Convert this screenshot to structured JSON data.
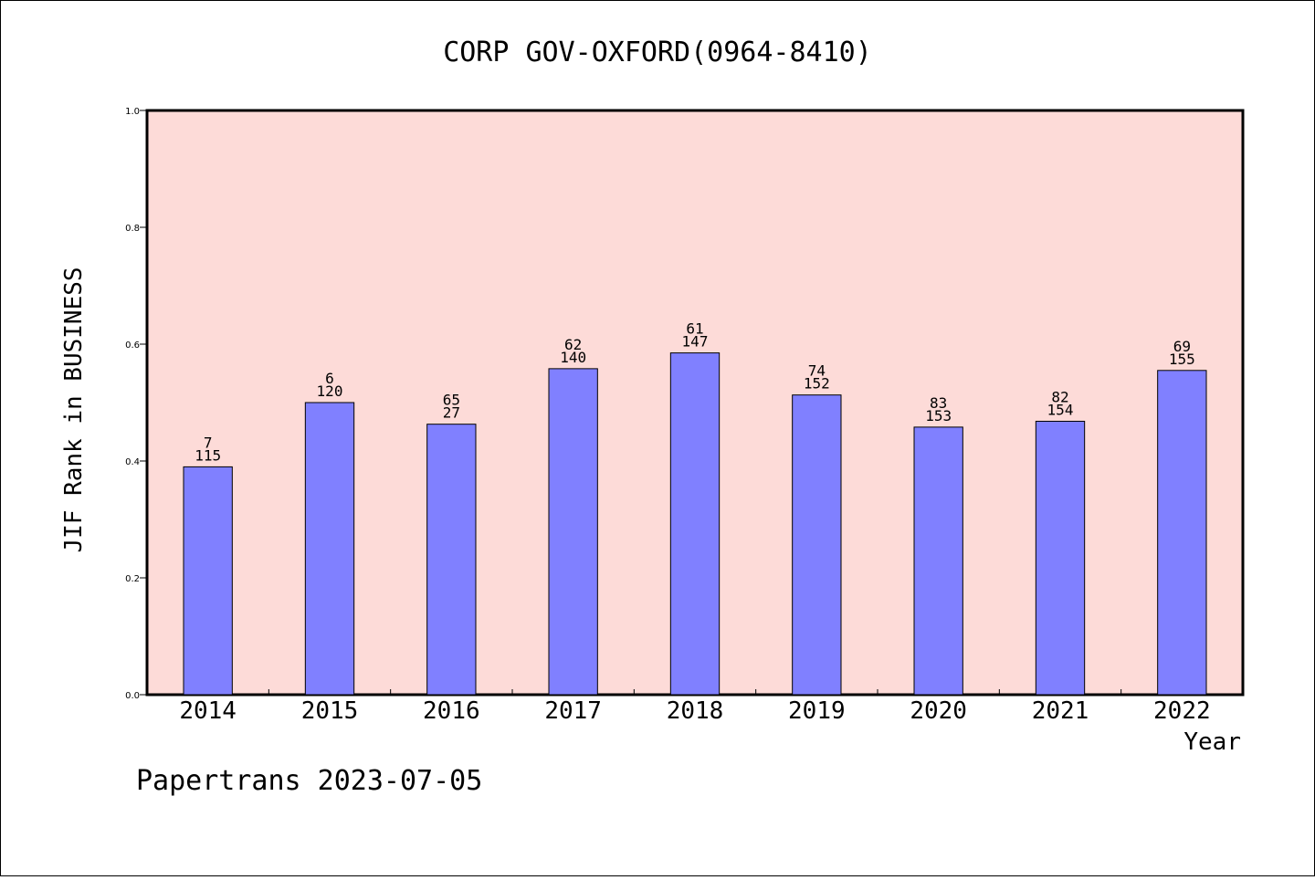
{
  "chart_data": {
    "type": "bar",
    "title": "CORP GOV-OXFORD(0964-8410)",
    "xlabel": "Year",
    "ylabel": "JIF Rank in BUSINESS",
    "ylim": [
      0,
      1.0
    ],
    "yticks": [
      "0.0",
      "0.2",
      "0.4",
      "0.6",
      "0.8",
      "1.0"
    ],
    "grid": false,
    "categories": [
      "2014",
      "2015",
      "2016",
      "2017",
      "2018",
      "2019",
      "2020",
      "2021",
      "2022"
    ],
    "values": [
      0.39,
      0.5,
      0.463,
      0.558,
      0.585,
      0.513,
      0.458,
      0.468,
      0.555
    ],
    "rank_labels": [
      "7",
      "6",
      "65",
      "62",
      "61",
      "74",
      "83",
      "82",
      "69"
    ],
    "total_labels": [
      "115",
      "120",
      "27",
      "140",
      "147",
      "152",
      "153",
      "154",
      "155"
    ],
    "colors": {
      "plot_background": "#fddbd8",
      "bar_fill": "#8080ff",
      "bar_stroke": "#000000"
    }
  },
  "footer": "Papertrans 2023-07-05"
}
